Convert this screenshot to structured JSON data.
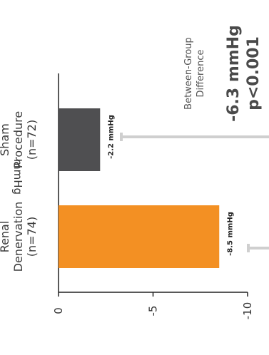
{
  "chart_data": {
    "type": "bar",
    "orientation": "rotated-90-ccw",
    "ylabel": "mmHg",
    "ylim": [
      0,
      -10
    ],
    "yticks": [
      {
        "value": 0,
        "label": "0"
      },
      {
        "value": -5,
        "label": "-5"
      },
      {
        "value": -10,
        "label": "-10"
      }
    ],
    "categories": [
      {
        "name": "Renal Denervation",
        "name_lines": [
          "Renal",
          "Denervation"
        ],
        "n_label": "(n=74)",
        "value": -8.5,
        "value_label": "-8.5 mmHg",
        "color": "#f39023"
      },
      {
        "name": "Sham Procedure",
        "name_lines": [
          "Sham",
          "Procedure"
        ],
        "n_label": "(n=72)",
        "value": -2.2,
        "value_label": "-2.2 mmHg",
        "color": "#4f4f51"
      }
    ],
    "annotation": {
      "heading_lines": [
        "Between-Group",
        "Difference"
      ],
      "difference": "-6.3 mmHg",
      "p_value": "p<0.001",
      "line_color": "#cfcfcf"
    },
    "grid": false
  }
}
